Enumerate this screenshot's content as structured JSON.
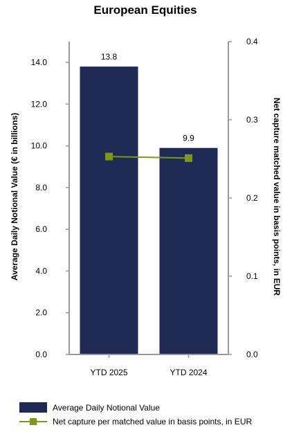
{
  "chart_data": {
    "type": "bar",
    "title": "European Equities",
    "categories": [
      "YTD 2025",
      "YTD 2024"
    ],
    "series": [
      {
        "name": "Average Daily Notional Value",
        "type": "bar",
        "axis": "left",
        "values": [
          13.8,
          9.9
        ],
        "data_labels": [
          "13.8",
          "9.9"
        ],
        "color": "#1f2a55"
      },
      {
        "name": "Net capture per matched value in basis points, in EUR",
        "type": "line",
        "axis": "right",
        "values": [
          0.253,
          0.251
        ],
        "color": "#7a9a17"
      }
    ],
    "ylabel": "Average Daily Notional Value (€ in billions)",
    "ylim": [
      0,
      15
    ],
    "yticks": [
      "0.0",
      "2.0",
      "4.0",
      "6.0",
      "8.0",
      "10.0",
      "12.0",
      "14.0"
    ],
    "y2label": "Net capture matched value in basis points, in EUR",
    "y2lim": [
      0,
      0.4
    ],
    "y2ticks": [
      "0.0",
      "0.1",
      "0.2",
      "0.3",
      "0.4"
    ],
    "grid": false,
    "legend_position": "bottom-left"
  }
}
